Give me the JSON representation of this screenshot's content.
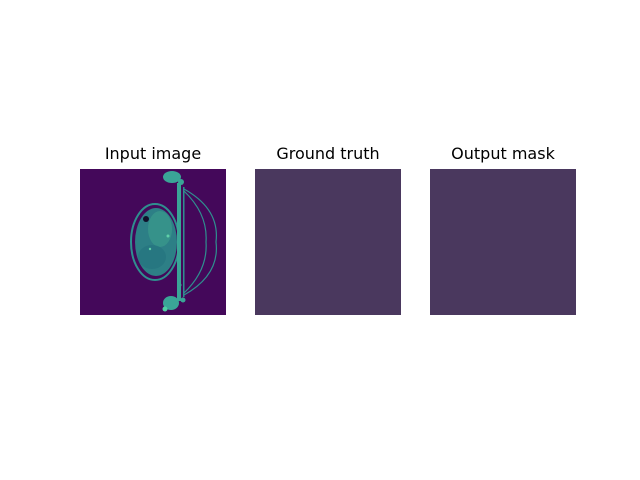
{
  "panels": [
    {
      "title": "Input image"
    },
    {
      "title": "Ground truth"
    },
    {
      "title": "Output mask"
    }
  ],
  "colors": {
    "background": "#ffffff",
    "input_background": "#44085a",
    "input_tissue": "#2f8f8f",
    "input_tissue_bright": "#3fb8a0",
    "mask_flat": "#4a385e"
  }
}
